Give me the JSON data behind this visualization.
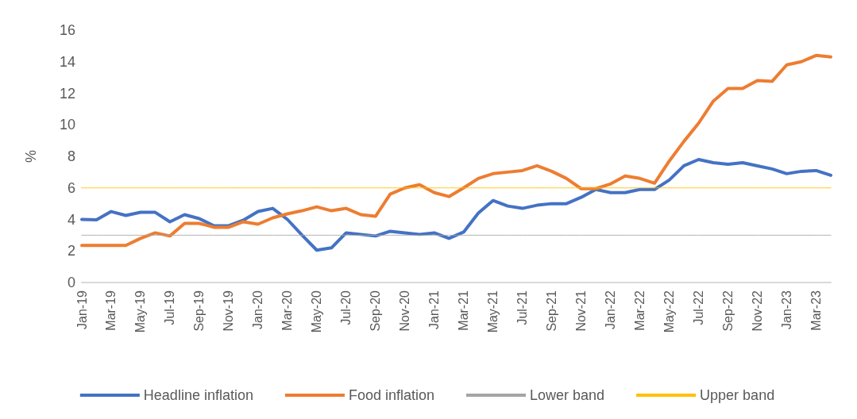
{
  "chart_data": {
    "type": "line",
    "ylabel": "%",
    "categories": [
      "Jan-19",
      null,
      "Mar-19",
      null,
      "May-19",
      null,
      "Jul-19",
      null,
      "Sep-19",
      null,
      "Nov-19",
      null,
      "Jan-20",
      null,
      "Mar-20",
      null,
      "May-20",
      null,
      "Jul-20",
      null,
      "Sep-20",
      null,
      "Nov-20",
      null,
      "Jan-21",
      null,
      "Mar-21",
      null,
      "May-21",
      null,
      "Jul-21",
      null,
      "Sep-21",
      null,
      "Nov-21",
      null,
      "Jan-22",
      null,
      "Mar-22",
      null,
      "May-22",
      null,
      "Jul-22",
      null,
      "Sep-22",
      null,
      "Nov-22",
      null,
      "Jan-23",
      null,
      "Mar-23",
      null
    ],
    "series": [
      {
        "name": "Headline inflation",
        "color": "#4472c4",
        "line_style": "solid",
        "values": [
          4.0,
          3.97,
          4.5,
          4.25,
          4.45,
          4.45,
          3.85,
          4.3,
          4.05,
          3.6,
          3.6,
          3.95,
          4.5,
          4.7,
          4.0,
          3.0,
          2.05,
          2.2,
          3.15,
          3.05,
          2.95,
          3.25,
          3.15,
          3.05,
          3.15,
          2.8,
          3.2,
          4.4,
          5.2,
          4.85,
          4.7,
          4.9,
          5.0,
          5.0,
          5.4,
          5.9,
          5.7,
          5.7,
          5.9,
          5.9,
          6.5,
          7.4,
          7.8,
          7.6,
          7.5,
          7.6,
          7.4,
          7.2,
          6.9,
          7.05,
          7.1,
          6.8
        ]
      },
      {
        "name": "Food inflation",
        "color": "#ed7d31",
        "line_style": "solid",
        "values": [
          2.35,
          2.35,
          2.35,
          2.35,
          2.8,
          3.15,
          2.95,
          3.75,
          3.75,
          3.5,
          3.5,
          3.85,
          3.7,
          4.1,
          4.35,
          4.55,
          4.8,
          4.55,
          4.7,
          4.3,
          4.2,
          5.6,
          6.0,
          6.2,
          5.7,
          5.45,
          6.0,
          6.6,
          6.9,
          7.0,
          7.1,
          7.4,
          7.05,
          6.6,
          5.95,
          5.95,
          6.25,
          6.75,
          6.6,
          6.3,
          7.7,
          8.95,
          10.1,
          11.5,
          12.3,
          12.3,
          12.8,
          12.75,
          13.8,
          14.0,
          14.4,
          14.3
        ]
      },
      {
        "name": "Lower band",
        "color": "#a5a5a5",
        "line_style": "dotted",
        "values": [
          3,
          3,
          3,
          3,
          3,
          3,
          3,
          3,
          3,
          3,
          3,
          3,
          3,
          3,
          3,
          3,
          3,
          3,
          3,
          3,
          3,
          3,
          3,
          3,
          3,
          3,
          3,
          3,
          3,
          3,
          3,
          3,
          3,
          3,
          3,
          3,
          3,
          3,
          3,
          3,
          3,
          3,
          3,
          3,
          3,
          3,
          3,
          3,
          3,
          3,
          3,
          3
        ]
      },
      {
        "name": "Upper band",
        "color": "#ffc000",
        "line_style": "dotted",
        "values": [
          6,
          6,
          6,
          6,
          6,
          6,
          6,
          6,
          6,
          6,
          6,
          6,
          6,
          6,
          6,
          6,
          6,
          6,
          6,
          6,
          6,
          6,
          6,
          6,
          6,
          6,
          6,
          6,
          6,
          6,
          6,
          6,
          6,
          6,
          6,
          6,
          6,
          6,
          6,
          6,
          6,
          6,
          6,
          6,
          6,
          6,
          6,
          6,
          6,
          6,
          6,
          6
        ]
      }
    ],
    "ylim": [
      0,
      16
    ],
    "yticks": [
      0,
      2,
      4,
      6,
      8,
      10,
      12,
      14,
      16
    ],
    "grid": false,
    "legend": "bottom",
    "marker": "none"
  }
}
